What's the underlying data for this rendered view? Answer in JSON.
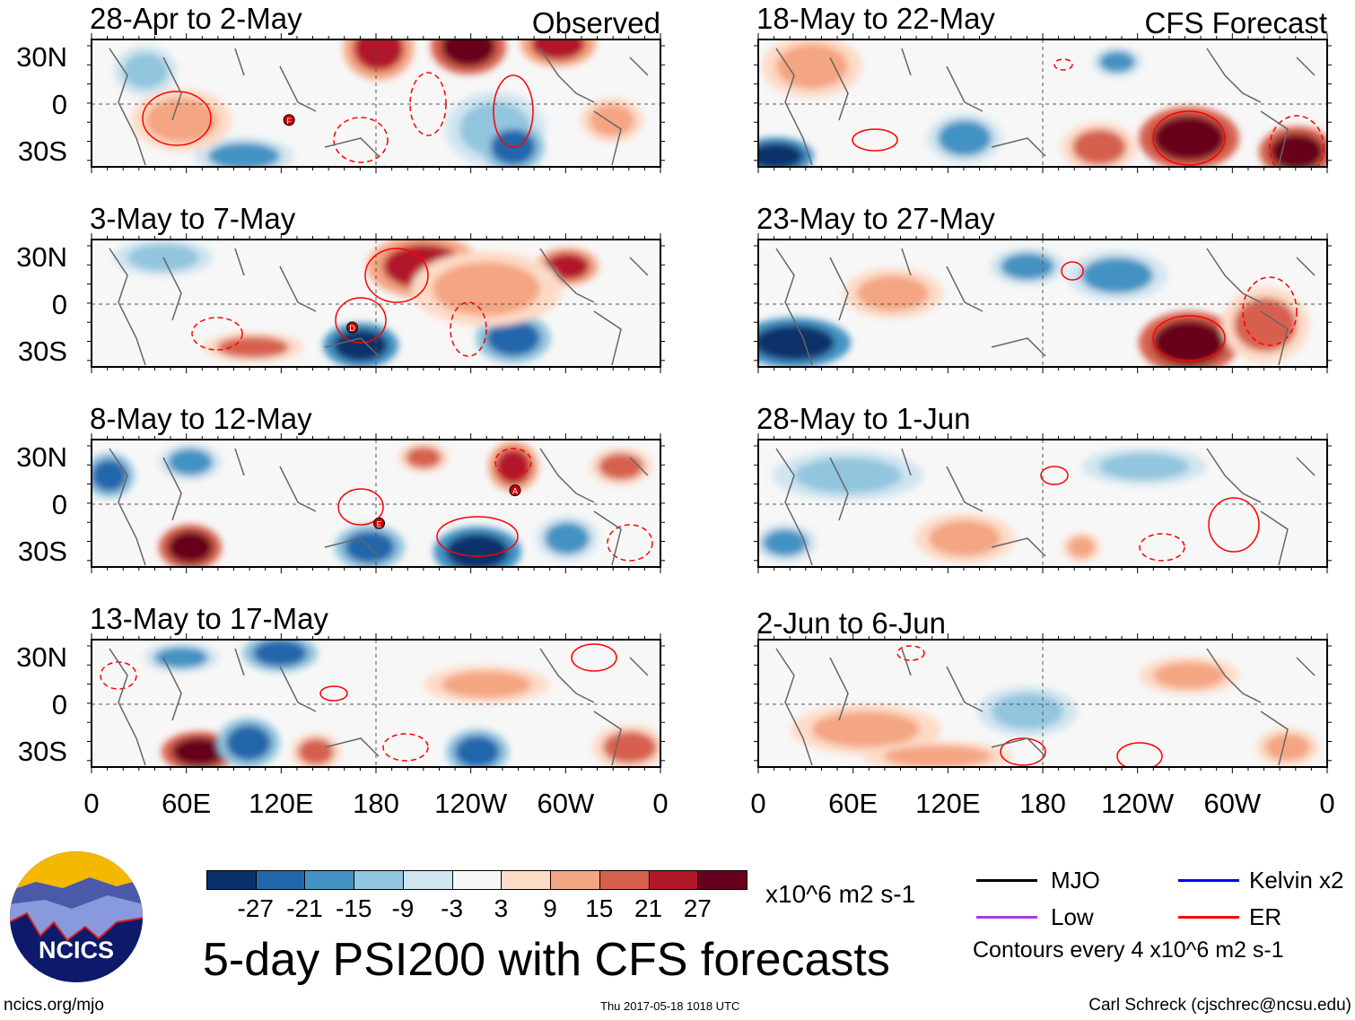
{
  "panels_left": [
    {
      "title": "28-Apr to 2-May",
      "label": "Observed",
      "markers": [
        {
          "letter": "F",
          "lon": 125,
          "lat": -15
        }
      ]
    },
    {
      "title": "3-May to 7-May",
      "markers": [
        {
          "letter": "D",
          "lon": 165,
          "lat": -22
        }
      ]
    },
    {
      "title": "8-May to 12-May",
      "markers": [
        {
          "letter": "A",
          "lon": 268,
          "lat": 13
        },
        {
          "letter": "E",
          "lon": 182,
          "lat": -18
        }
      ]
    },
    {
      "title": "13-May to 17-May",
      "markers": []
    }
  ],
  "panels_right": [
    {
      "title": "18-May to 22-May",
      "label": "CFS Forecast"
    },
    {
      "title": "23-May to 27-May"
    },
    {
      "title": "28-May to 1-Jun"
    },
    {
      "title": "2-Jun to 6-Jun"
    }
  ],
  "lat_labels": [
    "30N",
    "0",
    "30S"
  ],
  "lon_labels": [
    "0",
    "60E",
    "120E",
    "180",
    "120W",
    "60W",
    "0"
  ],
  "colorbar": {
    "colors": [
      "#08306b",
      "#2166ac",
      "#4393c3",
      "#92c5de",
      "#d1e5f0",
      "#f7f7f7",
      "#fddbc7",
      "#f4a582",
      "#d6604d",
      "#b2182b",
      "#67001f"
    ],
    "ticks": [
      "-27",
      "-21",
      "-15",
      "-9",
      "-3",
      "3",
      "9",
      "15",
      "21",
      "27"
    ],
    "units": "x10^6 m2 s-1"
  },
  "title": "5-day PSI200 with CFS forecasts",
  "legend": {
    "items": [
      {
        "label": "MJO",
        "color": "#000000"
      },
      {
        "label": "Kelvin x2",
        "color": "#0000ff"
      },
      {
        "label": "Low",
        "color": "#a040e0"
      },
      {
        "label": "ER",
        "color": "#ff0000"
      }
    ],
    "note": "Contours every 4 x10^6 m2 s-1"
  },
  "logo_text": "NCICS",
  "footer": {
    "url": "ncics.org/mjo",
    "timestamp": "Thu 2017-05-18 1018 UTC",
    "author": "Carl Schreck (cjschrec@ncsu.edu)"
  }
}
